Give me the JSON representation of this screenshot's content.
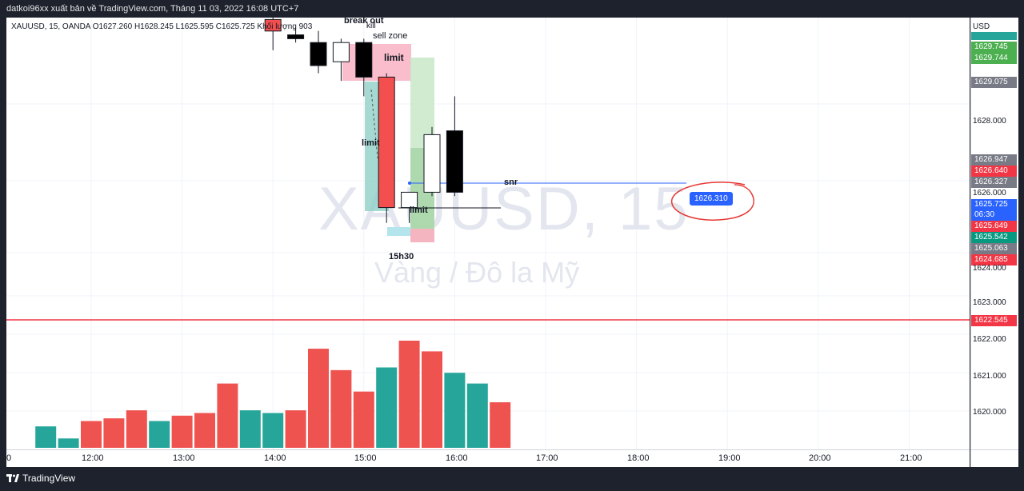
{
  "header": {
    "text": "datkoi96xx xuất bản về TradingView.com, Tháng 11 03, 2022 16:08 UTC+7"
  },
  "symbol_bar": {
    "text": "XAUUSD, 15, OANDA  O1627.260  H1628.245  L1625.595  C1625.725  Khối lượng 903"
  },
  "watermark": {
    "symbol": "XAUUSD, 15",
    "name": "Vàng / Đô la Mỹ"
  },
  "annotations": {
    "break_out": "break out",
    "kill": "kill",
    "sell_zone": "sell zone",
    "limit_top": "limit",
    "limit_mid": "limit",
    "limit_bottom": "limit",
    "snr": "snr",
    "time_note": "15h30",
    "snr_price": "1626.310"
  },
  "price_axis": {
    "currency": "USD",
    "ticks": [
      "1628.000",
      "1626.000",
      "1624.000",
      "1623.000",
      "1622.000",
      "1621.000",
      "1620.000"
    ],
    "tags": [
      {
        "text": "1629.745",
        "color": "#26a69a"
      },
      {
        "text": "1629.744",
        "color": "#4caf50"
      },
      {
        "text": "1629.075",
        "color": "#787b86"
      },
      {
        "text": "1626.947",
        "color": "#787b86"
      },
      {
        "text": "1626.640",
        "color": "#f23645"
      },
      {
        "text": "1626.327",
        "color": "#787b86"
      },
      {
        "text": "1625.725",
        "color": "#2962ff"
      },
      {
        "text": "06:30",
        "color": "#2962ff"
      },
      {
        "text": "1625.649",
        "color": "#f23645"
      },
      {
        "text": "1625.542",
        "color": "#089981"
      },
      {
        "text": "1625.063",
        "color": "#787b86"
      },
      {
        "text": "1624.685",
        "color": "#f23645"
      },
      {
        "text": "1622.545",
        "color": "#f23645"
      }
    ]
  },
  "time_axis": [
    "0",
    "12:00",
    "13:00",
    "14:00",
    "15:00",
    "16:00",
    "17:00",
    "18:00",
    "19:00",
    "20:00",
    "21:00"
  ],
  "footer": {
    "brand": "TradingView"
  },
  "colors": {
    "up": "#ffffff",
    "down": "#000000",
    "bear_candle": "#f44f4f",
    "vol_up": "#26a69a",
    "vol_down": "#ef5350",
    "support_line": "#f23645",
    "snr_line": "#2962ff"
  },
  "chart_data": {
    "type": "candlestick",
    "symbol": "XAUUSD",
    "interval": "15",
    "ylim": [
      1619.5,
      1629.9
    ],
    "volume": [
      {
        "time": "11:30",
        "value": 0.8,
        "dir": "up"
      },
      {
        "time": "11:45",
        "value": 0.35,
        "dir": "up"
      },
      {
        "time": "12:00",
        "value": 1.0,
        "dir": "down"
      },
      {
        "time": "12:15",
        "value": 1.1,
        "dir": "down"
      },
      {
        "time": "12:30",
        "value": 1.4,
        "dir": "down"
      },
      {
        "time": "12:45",
        "value": 1.0,
        "dir": "up"
      },
      {
        "time": "13:00",
        "value": 1.2,
        "dir": "down"
      },
      {
        "time": "13:15",
        "value": 1.3,
        "dir": "down"
      },
      {
        "time": "13:30",
        "value": 2.4,
        "dir": "down"
      },
      {
        "time": "13:45",
        "value": 1.4,
        "dir": "up"
      },
      {
        "time": "14:00",
        "value": 1.3,
        "dir": "up"
      },
      {
        "time": "14:15",
        "value": 1.4,
        "dir": "down"
      },
      {
        "time": "14:30",
        "value": 3.7,
        "dir": "down"
      },
      {
        "time": "14:45",
        "value": 2.9,
        "dir": "down"
      },
      {
        "time": "15:00",
        "value": 2.1,
        "dir": "down"
      },
      {
        "time": "15:15",
        "value": 3.0,
        "dir": "up"
      },
      {
        "time": "15:30",
        "value": 4.0,
        "dir": "down"
      },
      {
        "time": "15:45",
        "value": 3.6,
        "dir": "down"
      },
      {
        "time": "16:00",
        "value": 2.8,
        "dir": "up"
      },
      {
        "time": "16:15",
        "value": 2.4,
        "dir": "up"
      },
      {
        "time": "16:30",
        "value": 1.7,
        "dir": "down"
      }
    ],
    "candles": [
      {
        "time": "14:00",
        "open": 1630.2,
        "high": 1630.6,
        "low": 1629.4,
        "close": 1629.9,
        "color": "red"
      },
      {
        "time": "14:15",
        "open": 1629.8,
        "high": 1630.0,
        "low": 1629.6,
        "close": 1629.7,
        "color": "down"
      },
      {
        "time": "14:30",
        "open": 1629.6,
        "high": 1629.9,
        "low": 1628.8,
        "close": 1629.0,
        "color": "down"
      },
      {
        "time": "14:45",
        "open": 1629.1,
        "high": 1629.7,
        "low": 1628.6,
        "close": 1629.6,
        "color": "up"
      },
      {
        "time": "15:00",
        "open": 1629.6,
        "high": 1629.7,
        "low": 1628.2,
        "close": 1628.7,
        "color": "down"
      },
      {
        "time": "15:15",
        "open": 1628.7,
        "high": 1628.8,
        "low": 1624.9,
        "close": 1625.3,
        "color": "red"
      },
      {
        "time": "15:30",
        "open": 1625.3,
        "high": 1625.7,
        "low": 1624.9,
        "close": 1625.7,
        "color": "up"
      },
      {
        "time": "15:45",
        "open": 1625.7,
        "high": 1627.4,
        "low": 1625.6,
        "close": 1627.2,
        "color": "up"
      },
      {
        "time": "16:00",
        "open": 1627.3,
        "high": 1628.2,
        "low": 1625.6,
        "close": 1625.7,
        "color": "down"
      }
    ]
  }
}
